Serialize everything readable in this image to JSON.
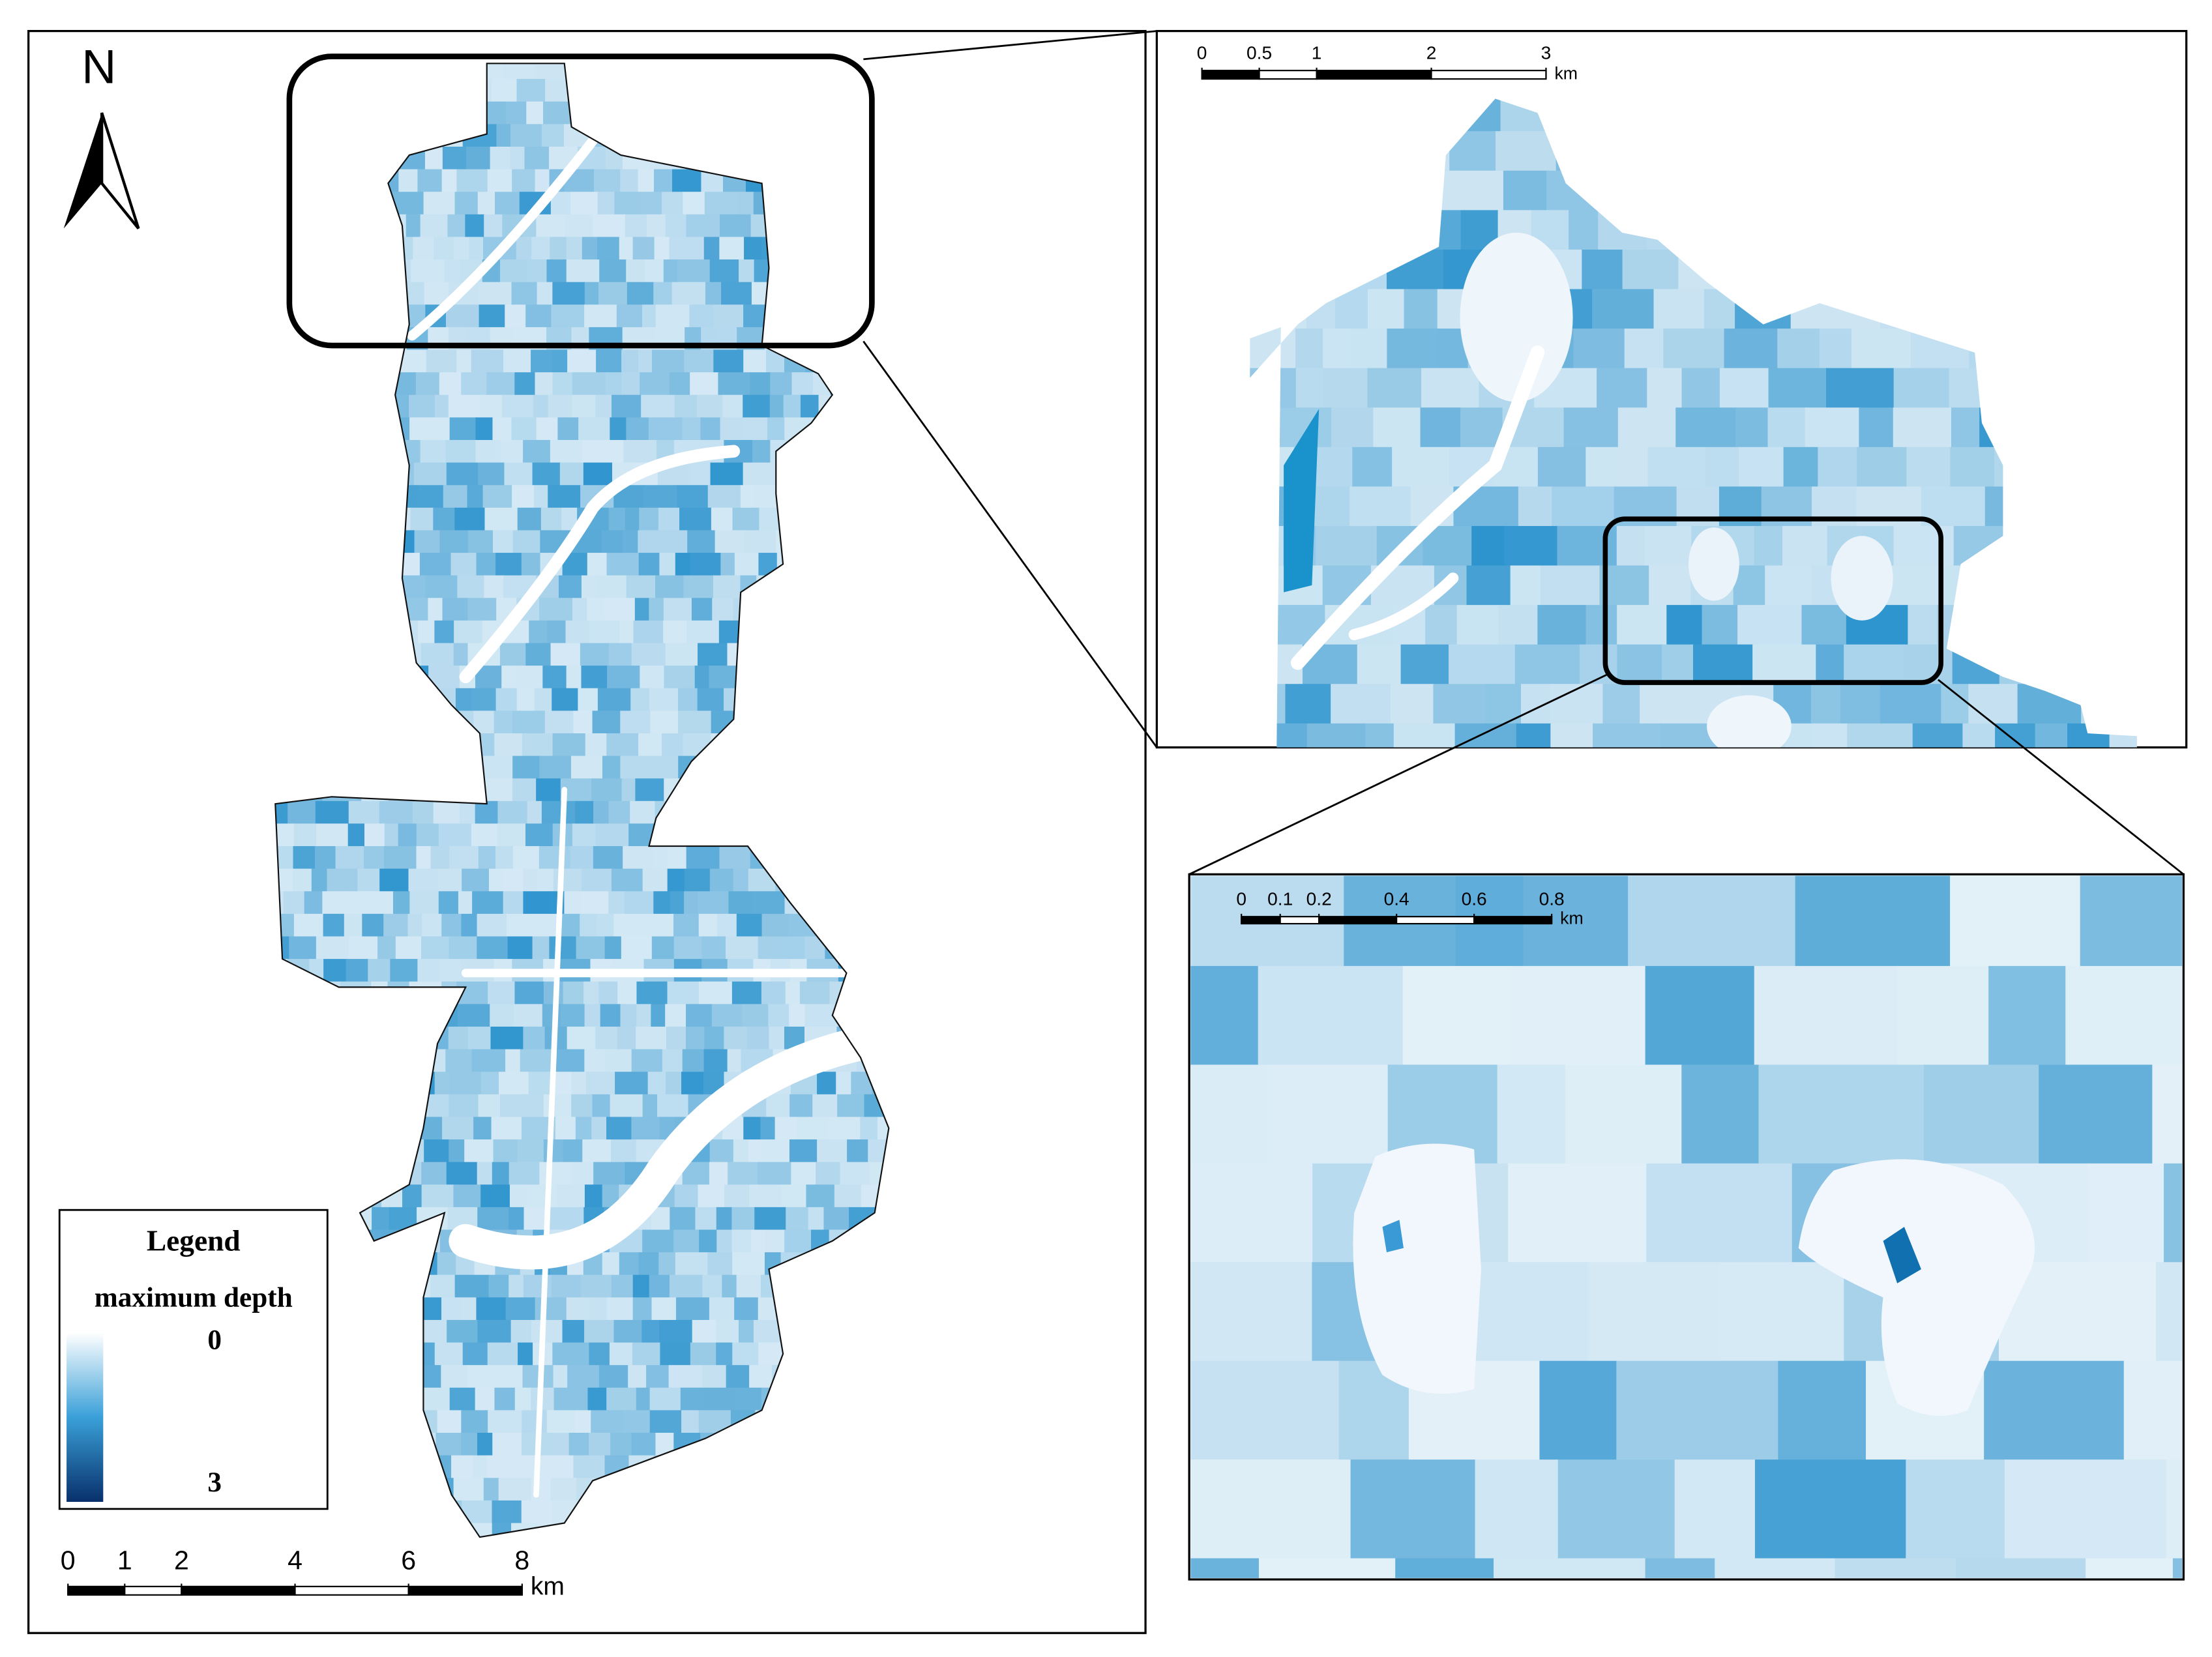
{
  "north_arrow": {
    "label": "N"
  },
  "legend": {
    "title": "Legend",
    "subtitle": "maximum depth",
    "min_label": 0,
    "max_label": 3
  },
  "scale_bars": [
    {
      "ticks": [
        0,
        1,
        2,
        4,
        6,
        8
      ],
      "unit": "km"
    },
    {
      "ticks": [
        0,
        0.5,
        1,
        2,
        3
      ],
      "unit": "km"
    },
    {
      "ticks": [
        0,
        0.1,
        0.2,
        0.4,
        0.6,
        0.8
      ],
      "unit": "km"
    }
  ]
}
